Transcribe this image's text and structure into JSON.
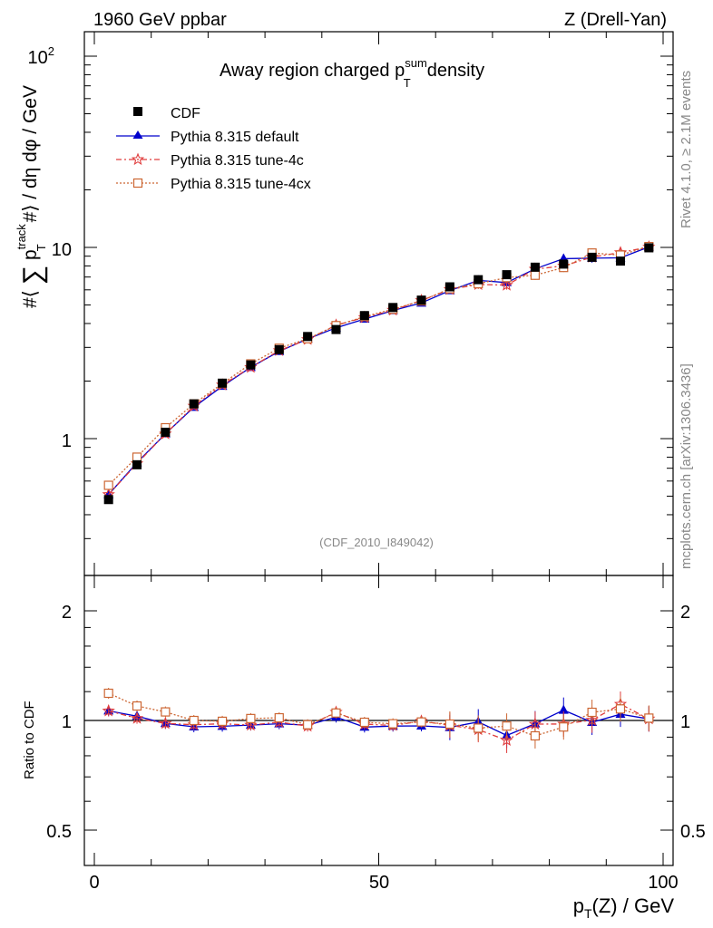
{
  "header": {
    "left": "1960 GeV ppbar",
    "right": "Z (Drell-Yan)",
    "title_main": "Away region charged p",
    "title_sup": "sum",
    "title_sub": "T",
    "title_tail": "density",
    "analysis_id": "(CDF_2010_I849042)",
    "side_top": "Rivet 4.1.0, ≥ 2.1M events",
    "side_bottom": "mcplots.cern.ch [arXiv:1306.3436]"
  },
  "colors": {
    "cdf": "#000000",
    "default": "#0000cc",
    "tune4c": "#e03c3c",
    "tune4cx": "#cc6633"
  },
  "chart_data": {
    "type": "line",
    "title": "Away region charged pT sum density",
    "ylabel": "#⟨ ∑ pT track #⟩ / dη dφ / GeV",
    "ratio_ylabel": "Ratio to CDF",
    "xlabel": "p_T(Z) / GeV",
    "xlim": [
      -2.5,
      102
    ],
    "ylim": [
      0.22,
      125
    ],
    "yscale": "log",
    "ratio_ylim": [
      0.4,
      2.35
    ],
    "x_ticks": [
      "0",
      "50",
      "100"
    ],
    "y_ticks": [
      "1",
      "10",
      "10^2"
    ],
    "ratio_ticks": [
      "0.5",
      "1",
      "2"
    ],
    "x": [
      2.5,
      7.5,
      12.5,
      17.5,
      22.5,
      27.5,
      32.5,
      37.5,
      42.5,
      47.5,
      52.5,
      57.5,
      62.5,
      67.5,
      72.5,
      77.5,
      82.5,
      87.5,
      92.5,
      97.5
    ],
    "series": [
      {
        "name": "CDF",
        "key": "cdf",
        "marker": "square",
        "values": [
          0.48,
          0.73,
          1.08,
          1.52,
          1.95,
          2.43,
          2.92,
          3.42,
          3.72,
          4.4,
          4.85,
          5.3,
          6.22,
          6.78,
          7.2,
          7.88,
          8.18,
          8.88,
          8.48,
          9.95
        ]
      },
      {
        "name": "Pythia 8.315 default",
        "key": "default",
        "marker": "triangle",
        "values": [
          0.51,
          0.75,
          1.06,
          1.46,
          1.88,
          2.36,
          2.86,
          3.32,
          3.8,
          4.22,
          4.68,
          5.12,
          5.95,
          6.72,
          6.55,
          7.72,
          8.73,
          8.78,
          8.82,
          10.05
        ]
      },
      {
        "name": "Pythia 8.315 tune-4c",
        "key": "tune4c",
        "marker": "star",
        "values": [
          0.51,
          0.74,
          1.06,
          1.48,
          1.91,
          2.36,
          2.89,
          3.3,
          3.92,
          4.3,
          4.7,
          5.28,
          6.03,
          6.4,
          6.35,
          7.7,
          8.0,
          8.9,
          9.4,
          10.05
        ]
      },
      {
        "name": "Pythia 8.315 tune-4cx",
        "key": "tune4cx",
        "marker": "open-square",
        "values": [
          0.57,
          0.8,
          1.14,
          1.52,
          1.94,
          2.46,
          2.97,
          3.33,
          3.9,
          4.35,
          4.75,
          5.25,
          6.08,
          6.46,
          6.95,
          7.15,
          7.85,
          9.35,
          9.12,
          10.1
        ]
      }
    ],
    "legend": [
      "CDF",
      "Pythia 8.315 default",
      "Pythia 8.315 tune-4c",
      "Pythia 8.315 tune-4cx"
    ],
    "legend_position": "top-left"
  }
}
